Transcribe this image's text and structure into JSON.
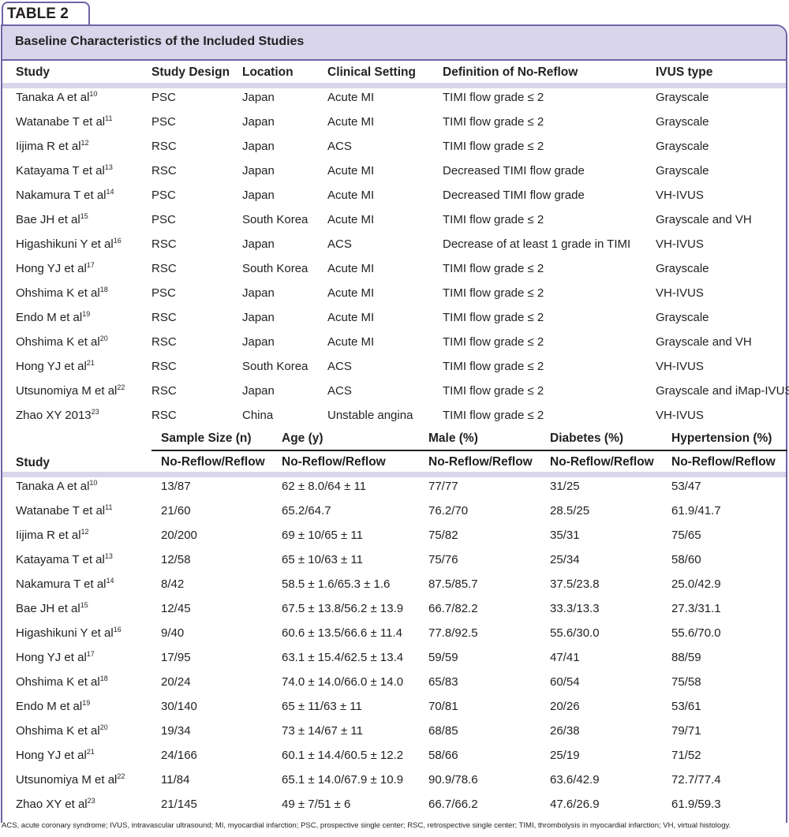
{
  "tab": "TABLE 2",
  "title": "Baseline Characteristics of the Included Studies",
  "table1": {
    "header": [
      "Study",
      "Study Design",
      "Location",
      "Clinical Setting",
      "Definition of No-Reflow",
      "IVUS type"
    ],
    "rows": [
      {
        "study": "Tanaka A et al",
        "ref": "10",
        "cells": [
          "PSC",
          "Japan",
          "Acute MI",
          "TIMI flow grade ≤ 2",
          "Grayscale"
        ]
      },
      {
        "study": "Watanabe T et al",
        "ref": "11",
        "cells": [
          "PSC",
          "Japan",
          "Acute MI",
          "TIMI flow grade ≤ 2",
          "Grayscale"
        ]
      },
      {
        "study": "Iijima R et al",
        "ref": "12",
        "cells": [
          "RSC",
          "Japan",
          "ACS",
          "TIMI flow grade ≤ 2",
          "Grayscale"
        ]
      },
      {
        "study": "Katayama T et al",
        "ref": "13",
        "cells": [
          "RSC",
          "Japan",
          "Acute MI",
          "Decreased TIMI flow grade",
          "Grayscale"
        ]
      },
      {
        "study": "Nakamura T et al",
        "ref": "14",
        "cells": [
          "PSC",
          "Japan",
          "Acute MI",
          "Decreased TIMI flow grade",
          "VH-IVUS"
        ]
      },
      {
        "study": "Bae JH et al",
        "ref": "15",
        "cells": [
          "PSC",
          "South Korea",
          "Acute MI",
          "TIMI flow grade ≤ 2",
          "Grayscale and VH"
        ]
      },
      {
        "study": "Higashikuni Y et al",
        "ref": "16",
        "cells": [
          "RSC",
          "Japan",
          "ACS",
          "Decrease of at least 1 grade in TIMI",
          "VH-IVUS"
        ]
      },
      {
        "study": "Hong YJ et al",
        "ref": "17",
        "cells": [
          "RSC",
          "South Korea",
          "Acute MI",
          "TIMI flow grade ≤ 2",
          "Grayscale"
        ]
      },
      {
        "study": "Ohshima K et al",
        "ref": "18",
        "cells": [
          "PSC",
          "Japan",
          "Acute MI",
          "TIMI flow grade ≤ 2",
          "VH-IVUS"
        ]
      },
      {
        "study": "Endo M et al",
        "ref": "19",
        "cells": [
          "RSC",
          "Japan",
          "Acute MI",
          "TIMI flow grade ≤ 2",
          "Grayscale"
        ]
      },
      {
        "study": "Ohshima K et al",
        "ref": "20",
        "cells": [
          "RSC",
          "Japan",
          "Acute MI",
          "TIMI flow grade ≤ 2",
          "Grayscale and VH"
        ]
      },
      {
        "study": "Hong YJ et al",
        "ref": "21",
        "cells": [
          "RSC",
          "South Korea",
          "ACS",
          "TIMI flow grade ≤ 2",
          "VH-IVUS"
        ]
      },
      {
        "study": "Utsunomiya M et al",
        "ref": "22",
        "cells": [
          "RSC",
          "Japan",
          "ACS",
          "TIMI flow grade ≤ 2",
          "Grayscale and iMap-IVUS"
        ]
      },
      {
        "study": "Zhao XY 2013",
        "ref": "23",
        "cells": [
          "RSC",
          "China",
          "Unstable angina",
          "TIMI flow grade ≤ 2",
          "VH-IVUS"
        ]
      }
    ]
  },
  "table2": {
    "header_top": [
      "Sample Size (n)",
      "Age (y)",
      "Male (%)",
      "Diabetes (%)",
      "Hypertension (%)"
    ],
    "header_study": "Study",
    "subheader": [
      "No-Reflow/Reflow",
      "No-Reflow/Reflow",
      "No-Reflow/Reflow",
      "No-Reflow/Reflow",
      "No-Reflow/Reflow"
    ],
    "rows": [
      {
        "study": "Tanaka A et al",
        "ref": "10",
        "cells": [
          "13/87",
          "62 ± 8.0/64 ± 11",
          "77/77",
          "31/25",
          "53/47"
        ]
      },
      {
        "study": "Watanabe T et al",
        "ref": "11",
        "cells": [
          "21/60",
          "65.2/64.7",
          "76.2/70",
          "28.5/25",
          "61.9/41.7"
        ]
      },
      {
        "study": "Iijima R et al",
        "ref": "12",
        "cells": [
          "20/200",
          "69 ± 10/65 ± 11",
          "75/82",
          "35/31",
          "75/65"
        ]
      },
      {
        "study": "Katayama T et al",
        "ref": "13",
        "cells": [
          "12/58",
          "65 ± 10/63 ± 11",
          "75/76",
          "25/34",
          "58/60"
        ]
      },
      {
        "study": "Nakamura T et al",
        "ref": "14",
        "cells": [
          "8/42",
          "58.5 ± 1.6/65.3 ± 1.6",
          "87.5/85.7",
          "37.5/23.8",
          "25.0/42.9"
        ]
      },
      {
        "study": "Bae JH et al",
        "ref": "15",
        "cells": [
          "12/45",
          "67.5 ± 13.8/56.2 ± 13.9",
          "66.7/82.2",
          "33.3/13.3",
          "27.3/31.1"
        ]
      },
      {
        "study": "Higashikuni Y et al",
        "ref": "16",
        "cells": [
          "9/40",
          "60.6 ± 13.5/66.6 ± 11.4",
          "77.8/92.5",
          "55.6/30.0",
          "55.6/70.0"
        ]
      },
      {
        "study": "Hong YJ et al",
        "ref": "17",
        "cells": [
          "17/95",
          "63.1 ± 15.4/62.5 ± 13.4",
          "59/59",
          "47/41",
          "88/59"
        ]
      },
      {
        "study": "Ohshima K et al",
        "ref": "18",
        "cells": [
          "20/24",
          "74.0 ± 14.0/66.0 ± 14.0",
          "65/83",
          "60/54",
          "75/58"
        ]
      },
      {
        "study": "Endo M et al",
        "ref": "19",
        "cells": [
          "30/140",
          "65 ± 11/63 ± 11",
          "70/81",
          "20/26",
          "53/61"
        ]
      },
      {
        "study": "Ohshima K et al",
        "ref": "20",
        "cells": [
          "19/34",
          "73 ± 14/67 ± 11",
          "68/85",
          "26/38",
          "79/71"
        ]
      },
      {
        "study": "Hong YJ et al",
        "ref": "21",
        "cells": [
          "24/166",
          "60.1 ± 14.4/60.5 ± 12.2",
          "58/66",
          "25/19",
          "71/52"
        ]
      },
      {
        "study": "Utsunomiya M et al",
        "ref": "22",
        "cells": [
          "11/84",
          "65.1 ± 14.0/67.9 ± 10.9",
          "90.9/78.6",
          "63.6/42.9",
          "72.7/77.4"
        ]
      },
      {
        "study": "Zhao XY et al",
        "ref": "23",
        "cells": [
          "21/145",
          "49 ± 7/51 ± 6",
          "66.7/66.2",
          "47.6/26.9",
          "61.9/59.3"
        ]
      }
    ]
  },
  "footnote": "ACS, acute coronary syndrome; IVUS, intravascular ultrasound; MI, myocardial infarction; PSC, prospective single center; RSC, retrospective single center; TIMI, thrombolysis in myocardial infarction; VH, virtual histology."
}
